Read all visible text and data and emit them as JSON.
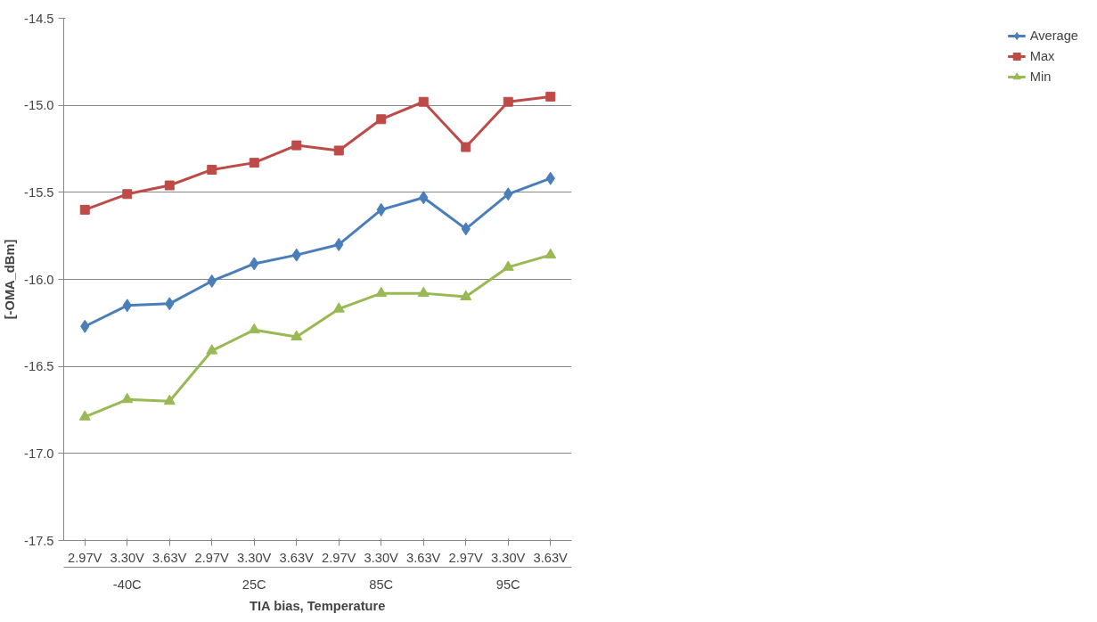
{
  "chart_data": {
    "type": "line",
    "xlabel": "TIA bias, Temperature",
    "ylabel": "[-OMA_dBm]",
    "categories": [
      "2.97V",
      "3.30V",
      "3.63V",
      "2.97V",
      "3.30V",
      "3.63V",
      "2.97V",
      "3.30V",
      "3.63V",
      "2.97V",
      "3.30V",
      "3.63V"
    ],
    "annotations": [
      "-40C",
      "25C",
      "85C",
      "95C"
    ],
    "ylim": [
      -17.5,
      -14.5
    ],
    "yticks": [
      {
        "value": -17.5,
        "label": "-17.5"
      },
      {
        "value": -17,
        "label": "-17.0"
      },
      {
        "value": -16.5,
        "label": "-16.5"
      },
      {
        "value": -16,
        "label": "-16.0"
      },
      {
        "value": -15.5,
        "label": "-15.5"
      },
      {
        "value": -15,
        "label": "-15.0"
      },
      {
        "value": -14.5,
        "label": "-14.5"
      }
    ],
    "grid": "y",
    "legend": "right",
    "line_style": "solid",
    "series": [
      {
        "name": "Average",
        "color": "#4a7ebb",
        "marker": "diamond",
        "values": [
          -16.27,
          -16.15,
          -16.14,
          -16.01,
          -15.91,
          -15.86,
          -15.8,
          -15.6,
          -15.53,
          -15.71,
          -15.51,
          -15.42
        ]
      },
      {
        "name": "Max",
        "color": "#be4b48",
        "marker": "square",
        "values": [
          -15.6,
          -15.51,
          -15.46,
          -15.37,
          -15.33,
          -15.23,
          -15.26,
          -15.08,
          -14.98,
          -15.24,
          -14.98,
          -14.95
        ]
      },
      {
        "name": "Min",
        "color": "#98b954",
        "marker": "triangle",
        "values": [
          -16.79,
          -16.69,
          -16.7,
          -16.41,
          -16.29,
          -16.33,
          -16.17,
          -16.08,
          -16.08,
          -16.1,
          -15.93,
          -15.86
        ]
      }
    ]
  }
}
